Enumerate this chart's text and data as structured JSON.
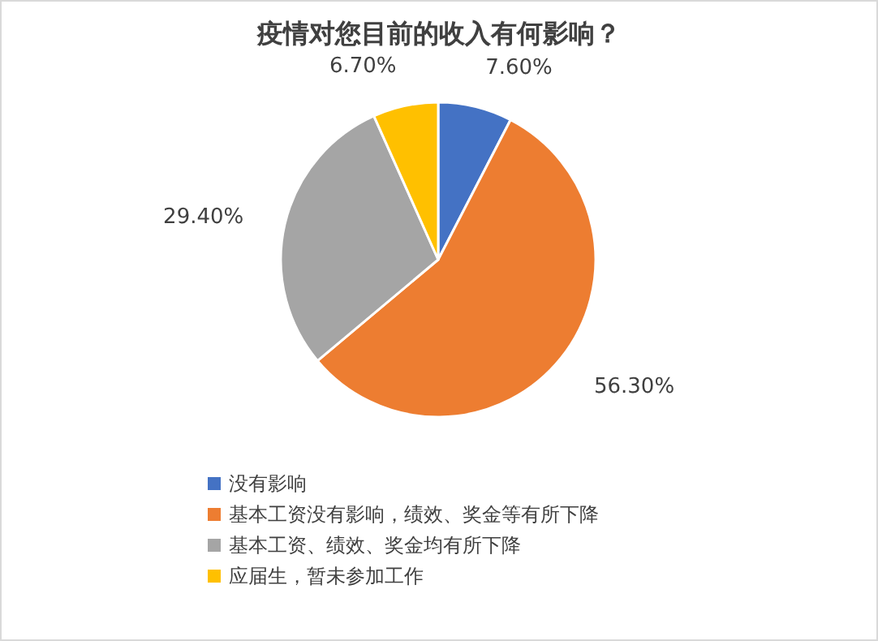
{
  "chart_data": {
    "type": "pie",
    "title": "疫情对您目前的收入有何影响？",
    "categories": [
      "没有影响",
      "基本工资没有影响，绩效、奖金等有所下降",
      "基本工资、绩效、奖金均有所下降",
      "应届生，暂未参加工作"
    ],
    "values": [
      7.6,
      56.3,
      29.4,
      6.7
    ],
    "colors": [
      "#4472c4",
      "#ed7d31",
      "#a5a5a5",
      "#ffc000"
    ],
    "value_labels": [
      "7.60%",
      "56.30%",
      "29.40%",
      "6.70%"
    ],
    "legend": "bottom"
  }
}
